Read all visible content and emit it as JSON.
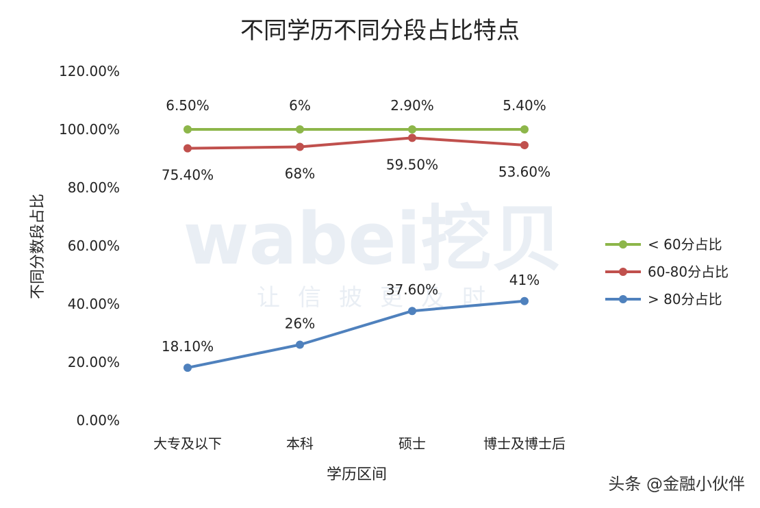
{
  "watermark": {
    "brand": "wabei挖贝",
    "slogan": "让信披更及时"
  },
  "credit": "头条 @金融小伙伴",
  "chart_data": {
    "type": "line",
    "title": "不同学历不同分段占比特点",
    "xlabel": "学历区间",
    "ylabel": "不同分数段占比",
    "categories": [
      "大专及以下",
      "本科",
      "硕士",
      "博士及博士后"
    ],
    "ylim": [
      0,
      120
    ],
    "yticks": [
      "0.00%",
      "20.00%",
      "40.00%",
      "60.00%",
      "80.00%",
      "100.00%",
      "120.00%"
    ],
    "grid": false,
    "legend_position": "right",
    "series": [
      {
        "name": "< 60分占比",
        "color": "#8db64a",
        "values": [
          100,
          100,
          100,
          100
        ],
        "labels": [
          "6.50%",
          "6%",
          "2.90%",
          "5.40%"
        ]
      },
      {
        "name": "60-80分占比",
        "color": "#c0504d",
        "values": [
          93.5,
          94,
          97.1,
          94.6
        ],
        "labels": [
          "75.40%",
          "68%",
          "59.50%",
          "53.60%"
        ]
      },
      {
        "name": "> 80分占比",
        "color": "#4f81bd",
        "values": [
          18.1,
          26,
          37.6,
          41
        ],
        "labels": [
          "18.10%",
          "26%",
          "37.60%",
          "41%"
        ]
      }
    ]
  }
}
